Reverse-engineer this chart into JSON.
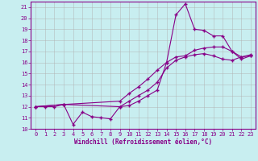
{
  "xlabel": "Windchill (Refroidissement éolien,°C)",
  "bg_color": "#c8eef0",
  "line_color": "#880088",
  "grid_color": "#b0b0b0",
  "xlim": [
    -0.5,
    23.5
  ],
  "ylim": [
    10,
    21.5
  ],
  "xticks": [
    0,
    1,
    2,
    3,
    4,
    5,
    6,
    7,
    8,
    9,
    10,
    11,
    12,
    13,
    14,
    15,
    16,
    17,
    18,
    19,
    20,
    21,
    22,
    23
  ],
  "yticks": [
    10,
    11,
    12,
    13,
    14,
    15,
    16,
    17,
    18,
    19,
    20,
    21
  ],
  "line1_x": [
    0,
    1,
    2,
    3,
    4,
    5,
    6,
    7,
    8,
    9,
    10,
    11,
    12,
    13,
    14,
    15,
    16,
    17,
    18,
    19,
    20,
    21,
    22,
    23
  ],
  "line1_y": [
    12,
    12,
    12,
    12.2,
    10.4,
    11.5,
    11.1,
    11.0,
    10.9,
    12.0,
    12.1,
    12.5,
    13.0,
    13.5,
    16.0,
    20.3,
    21.3,
    19.0,
    18.9,
    18.4,
    18.4,
    17.0,
    16.3,
    16.6
  ],
  "line2_x": [
    0,
    3,
    9,
    10,
    11,
    12,
    13,
    14,
    15,
    16,
    17,
    18,
    19,
    20,
    21,
    22,
    23
  ],
  "line2_y": [
    12,
    12.2,
    12.5,
    13.2,
    13.8,
    14.5,
    15.3,
    16.0,
    16.5,
    16.6,
    17.1,
    17.3,
    17.4,
    17.4,
    17.0,
    16.5,
    16.7
  ],
  "line3_x": [
    0,
    3,
    9,
    10,
    11,
    12,
    13,
    14,
    15,
    16,
    17,
    18,
    19,
    20,
    21,
    22,
    23
  ],
  "line3_y": [
    12,
    12.2,
    12.0,
    12.5,
    13.0,
    13.5,
    14.2,
    15.5,
    16.2,
    16.5,
    16.7,
    16.8,
    16.6,
    16.3,
    16.2,
    16.5,
    16.6
  ]
}
